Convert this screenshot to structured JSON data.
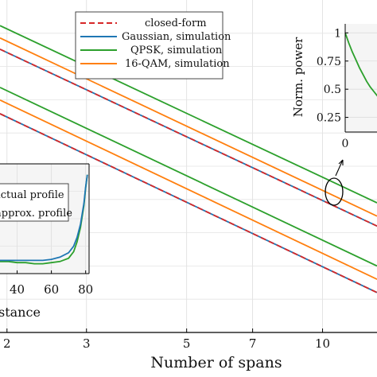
{
  "chart_data": [
    {
      "id": "main",
      "type": "line",
      "title": "",
      "xlabel": "Number of spans",
      "ylabel": "",
      "x_scale": "log",
      "x_ticks": [
        2,
        3,
        5,
        7,
        10
      ],
      "x_tick_labels": [
        "2",
        "3",
        "5",
        "7",
        "10"
      ],
      "xlim": [
        1.93,
        13.2
      ],
      "ylim": [
        0,
        10
      ],
      "grid": true,
      "legend_position": "top-right",
      "legend": [
        {
          "label": "closed-form",
          "style": "dashed",
          "color": "#d62728"
        },
        {
          "label": "Gaussian, simulation",
          "style": "solid",
          "color": "#1f77b4"
        },
        {
          "label": "QPSK, simulation",
          "style": "solid",
          "color": "#2ca02c"
        },
        {
          "label": "16-QAM, simulation",
          "style": "solid",
          "color": "#ff7f0e"
        }
      ],
      "series": [
        {
          "group": "upper",
          "style": "QPSK, simulation",
          "x": [
            1.93,
            13.2
          ],
          "y": [
            9.23,
            3.9
          ]
        },
        {
          "group": "upper",
          "style": "16-QAM, simulation",
          "x": [
            1.93,
            13.2
          ],
          "y": [
            8.86,
            3.5
          ]
        },
        {
          "group": "upper",
          "style": "Gaussian, simulation",
          "x": [
            1.93,
            13.2
          ],
          "y": [
            8.52,
            3.2
          ]
        },
        {
          "group": "upper",
          "style": "closed-form",
          "x": [
            1.93,
            13.2
          ],
          "y": [
            8.52,
            3.2
          ]
        },
        {
          "group": "lower",
          "style": "QPSK, simulation",
          "x": [
            1.93,
            13.2
          ],
          "y": [
            7.37,
            2.0
          ]
        },
        {
          "group": "lower",
          "style": "16-QAM, simulation",
          "x": [
            1.93,
            13.2
          ],
          "y": [
            6.99,
            1.6
          ]
        },
        {
          "group": "lower",
          "style": "Gaussian, simulation",
          "x": [
            1.93,
            13.2
          ],
          "y": [
            6.58,
            1.2
          ]
        },
        {
          "group": "lower",
          "style": "closed-form",
          "x": [
            1.93,
            13.2
          ],
          "y": [
            6.58,
            1.2
          ]
        }
      ],
      "annotation": {
        "type": "ellipse",
        "x": 10.3,
        "y": 4.65
      }
    },
    {
      "id": "inset-power",
      "type": "line",
      "ylabel": "Norm. power",
      "xlim": [
        0,
        20
      ],
      "ylim": [
        0.12,
        1.08
      ],
      "x_ticks": [
        0
      ],
      "x_tick_labels": [
        "0"
      ],
      "y_ticks": [
        0.25,
        0.5,
        0.75,
        1
      ],
      "y_tick_labels": [
        "0.25",
        "0.5",
        "0.75",
        "1"
      ],
      "grid": true,
      "series": [
        {
          "style": "QPSK, simulation",
          "x": [
            0,
            2,
            4,
            6,
            8,
            10,
            12,
            14,
            16,
            18,
            20
          ],
          "y": [
            1.0,
            0.91,
            0.83,
            0.76,
            0.69,
            0.63,
            0.57,
            0.52,
            0.48,
            0.44,
            0.4
          ]
        }
      ]
    },
    {
      "id": "inset-profile",
      "type": "line",
      "xlabel": "stance",
      "xlim": [
        30,
        82
      ],
      "ylim": [
        0,
        1
      ],
      "x_ticks": [
        40,
        60,
        80
      ],
      "x_tick_labels": [
        "40",
        "60",
        "80"
      ],
      "grid": true,
      "legend": [
        {
          "label": "actual profile",
          "style": "solid",
          "color": "#2ca02c"
        },
        {
          "label": "approx. profile",
          "style": "solid",
          "color": "#1f77b4"
        }
      ],
      "series": [
        {
          "style": "actual profile",
          "x": [
            30,
            35,
            40,
            45,
            50,
            55,
            60,
            65,
            70,
            73,
            75,
            77,
            79,
            80,
            81
          ],
          "y": [
            0.11,
            0.11,
            0.1,
            0.1,
            0.09,
            0.09,
            0.1,
            0.11,
            0.14,
            0.2,
            0.29,
            0.42,
            0.62,
            0.78,
            0.9
          ]
        },
        {
          "style": "approx. profile",
          "x": [
            30,
            35,
            40,
            45,
            50,
            55,
            60,
            65,
            70,
            73,
            75,
            77,
            79,
            80,
            81
          ],
          "y": [
            0.12,
            0.12,
            0.12,
            0.12,
            0.12,
            0.12,
            0.13,
            0.15,
            0.19,
            0.25,
            0.33,
            0.45,
            0.64,
            0.79,
            0.9
          ]
        }
      ]
    }
  ]
}
